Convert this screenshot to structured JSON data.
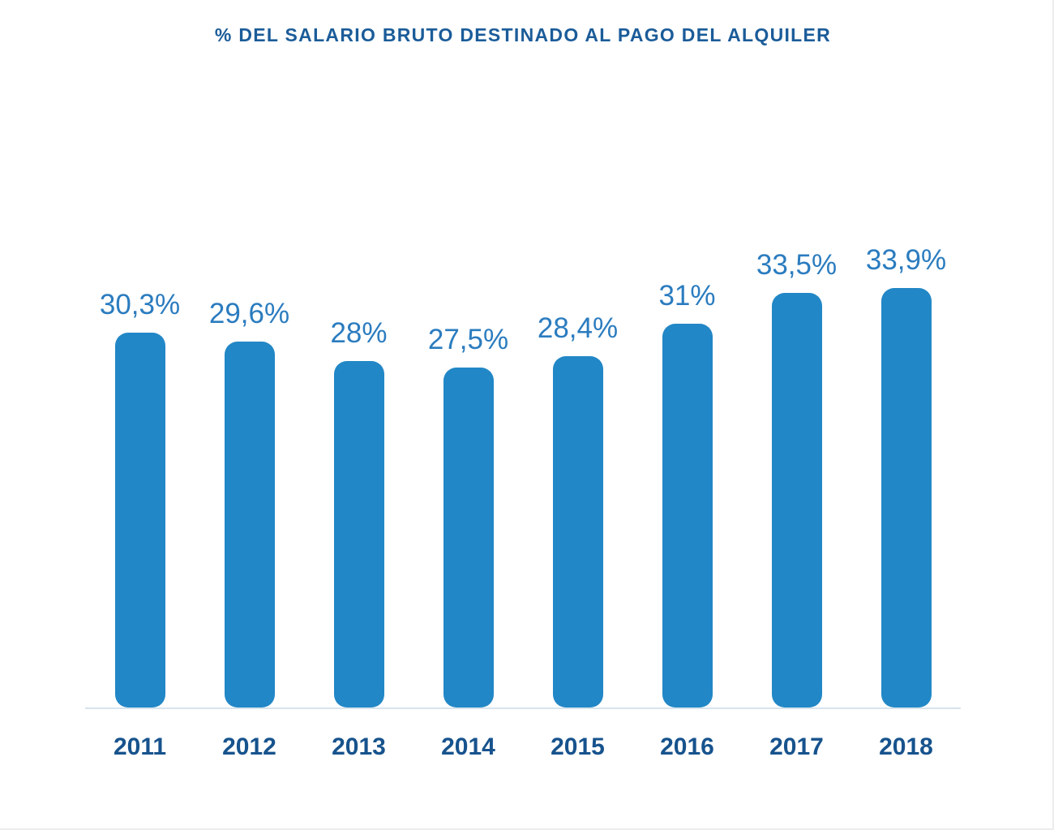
{
  "chart_data": {
    "type": "bar",
    "title": "% DEL SALARIO BRUTO DESTINADO AL PAGO DEL ALQUILER",
    "categories": [
      "2011",
      "2012",
      "2013",
      "2014",
      "2015",
      "2016",
      "2017",
      "2018"
    ],
    "values": [
      30.3,
      29.6,
      28,
      27.5,
      28.4,
      31,
      33.5,
      33.9
    ],
    "value_labels": [
      "30,3%",
      "29,6%",
      "28%",
      "27,5%",
      "28,4%",
      "31%",
      "33,5%",
      "33,9%"
    ],
    "xlabel": "",
    "ylabel": "",
    "ylim": [
      0,
      34
    ],
    "grid": false,
    "legend": "none",
    "bar_color": "#2287c6",
    "label_color": "#2b7cbf",
    "axis_label_color": "#17538d",
    "title_color": "#1b5c99",
    "baseline_color": "#d7e4ee"
  }
}
